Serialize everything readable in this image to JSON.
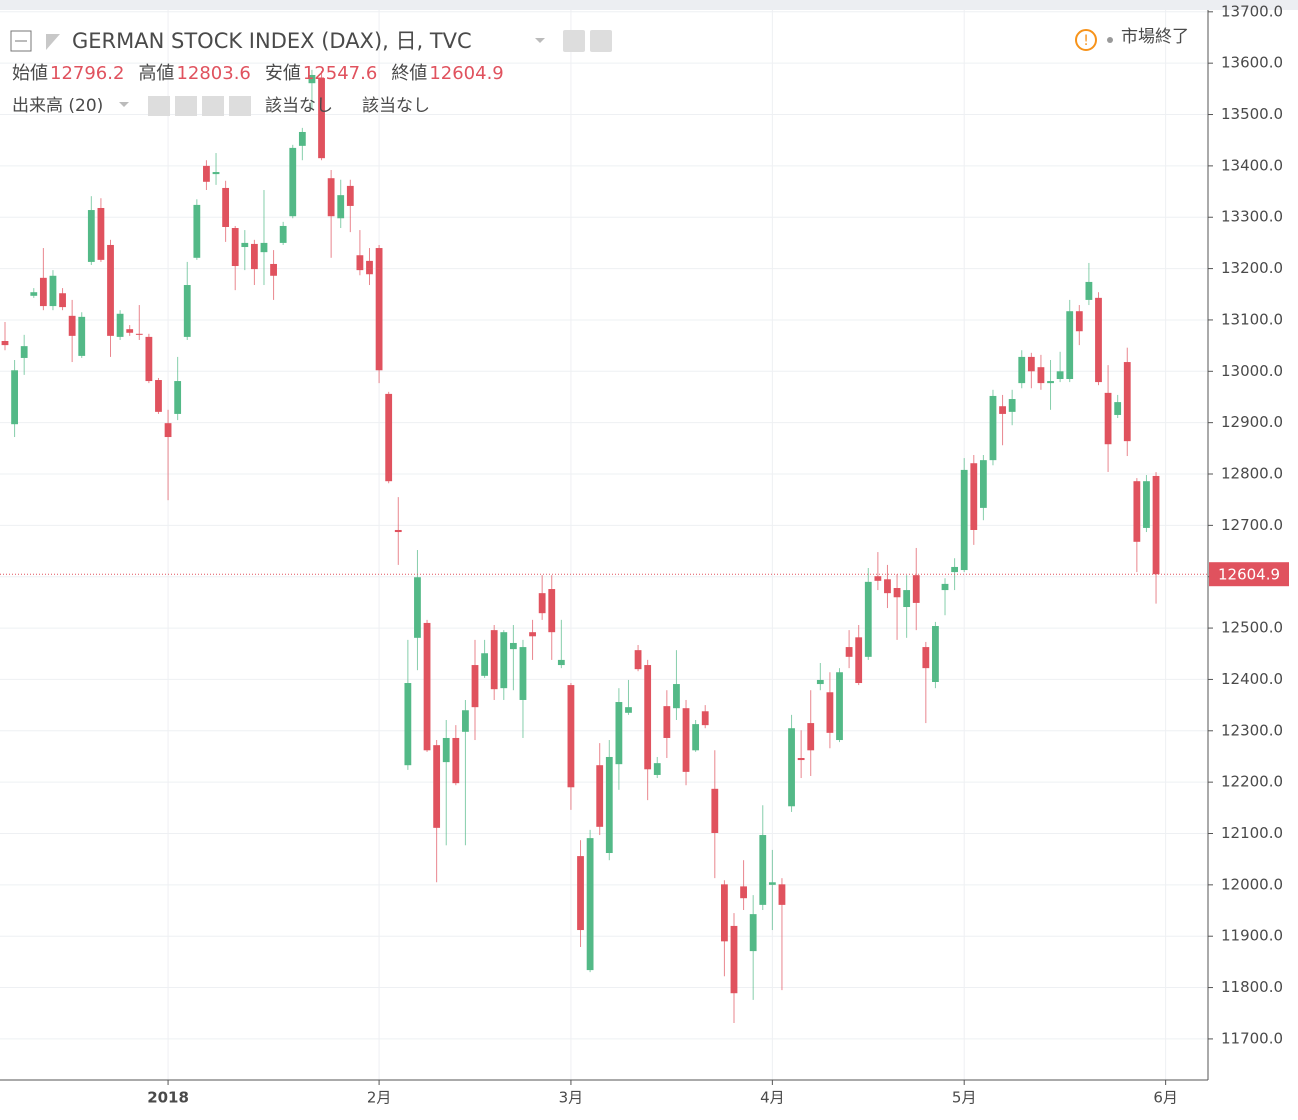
{
  "chart_data": {
    "type": "candlestick",
    "title": "GERMAN STOCK INDEX (DAX), 日, TVC",
    "ohlc_labels": [
      "始値",
      "高値",
      "安値",
      "終値"
    ],
    "indicator": "出来高 (20)",
    "indicator_values": [
      "該当なし",
      "該当なし"
    ],
    "status": "市場終了",
    "up_color": "#53b987",
    "down_color": "#e0525e",
    "grid": true,
    "ylim": [
      11620,
      13723
    ],
    "yticks": [
      {
        "value": 11700,
        "label": "11700.0"
      },
      {
        "value": 11800,
        "label": "11800.0"
      },
      {
        "value": 11900,
        "label": "11900.0"
      },
      {
        "value": 12000,
        "label": "12000.0"
      },
      {
        "value": 12100,
        "label": "12100.0"
      },
      {
        "value": 12200,
        "label": "12200.0"
      },
      {
        "value": 12300,
        "label": "12300.0"
      },
      {
        "value": 12400,
        "label": "12400.0"
      },
      {
        "value": 12500,
        "label": "12500.0"
      },
      {
        "value": 12600,
        "label": "12600.0"
      },
      {
        "value": 12700,
        "label": "12700.0"
      },
      {
        "value": 12800,
        "label": "12800.0"
      },
      {
        "value": 12900,
        "label": "12900.0"
      },
      {
        "value": 13000,
        "label": "13000.0"
      },
      {
        "value": 13100,
        "label": "13100.0"
      },
      {
        "value": 13200,
        "label": "13200.0"
      },
      {
        "value": 13300,
        "label": "13300.0"
      },
      {
        "value": 13400,
        "label": "13400.0"
      },
      {
        "value": 13500,
        "label": "13500.0"
      },
      {
        "value": 13600,
        "label": "13600.0"
      },
      {
        "value": 13700,
        "label": "13700.0"
      }
    ],
    "categories": [
      null,
      null,
      null,
      null,
      null,
      null,
      null,
      null,
      null,
      null,
      null,
      null,
      null,
      null,
      null,
      null,
      null,
      "2018",
      null,
      null,
      null,
      null,
      null,
      null,
      null,
      null,
      null,
      null,
      null,
      null,
      null,
      null,
      null,
      null,
      null,
      null,
      null,
      null,
      null,
      "2月",
      null,
      null,
      null,
      null,
      null,
      null,
      null,
      null,
      null,
      null,
      null,
      null,
      null,
      null,
      null,
      null,
      null,
      null,
      null,
      "3月",
      null,
      null,
      null,
      null,
      null,
      null,
      null,
      null,
      null,
      null,
      null,
      null,
      null,
      null,
      null,
      null,
      null,
      null,
      null,
      null,
      "4月",
      null,
      null,
      null,
      null,
      null,
      null,
      null,
      null,
      null,
      null,
      null,
      null,
      null,
      null,
      null,
      null,
      null,
      null,
      null,
      "5月",
      null,
      null,
      null,
      null,
      null,
      null,
      null,
      null,
      null,
      null,
      null,
      null,
      null,
      null,
      null,
      null,
      null,
      null,
      null,
      null,
      "6月"
    ],
    "open": [
      13059,
      12897,
      13026,
      13147,
      13182,
      13127,
      13152,
      13108,
      13030,
      13213,
      13318,
      13246,
      13067,
      13082,
      13073,
      13067,
      12983,
      12899,
      12917,
      13067,
      13221,
      13400,
      13384,
      13357,
      13279,
      13242,
      13248,
      13232,
      13209,
      13250,
      13302,
      13439,
      13561,
      13571,
      13376,
      13298,
      13361,
      13226,
      13215,
      13240,
      12956,
      12691,
      12233,
      12481,
      12510,
      12272,
      12239,
      12286,
      12298,
      12428,
      12407,
      12496,
      12383,
      12459,
      12360,
      12492,
      12568,
      12576,
      12428,
      12389,
      12056,
      11834,
      12233,
      12062,
      12235,
      12335,
      12457,
      12428,
      12214,
      12348,
      12344,
      12344,
      12262,
      12338,
      12187,
      12001,
      11920,
      11997,
      11871,
      11961,
      12000,
      12001,
      12153,
      12247,
      12315,
      12391,
      12375,
      12282,
      12463,
      12482,
      12444,
      12601,
      12595,
      12578,
      12541,
      12603,
      12463,
      12395,
      12574,
      12609,
      12613,
      12821,
      12734,
      12827,
      12932,
      12921,
      12977,
      13028,
      13008,
      12977,
      12985,
      12985,
      13117,
      13139,
      13143,
      12958,
      12915,
      13018,
      12786,
      12695,
      12796.2,
      null
    ],
    "high": [
      13096,
      13022,
      13071,
      13162,
      13240,
      13197,
      13162,
      13139,
      13115,
      13341,
      13337,
      13256,
      13119,
      13090,
      13129,
      13073,
      12987,
      12925,
      13028,
      13213,
      13335,
      13411,
      13425,
      13371,
      13283,
      13275,
      13256,
      13353,
      13236,
      13291,
      13441,
      13474,
      13587,
      13585,
      13392,
      13373,
      13373,
      13275,
      13240,
      13246,
      12960,
      12755,
      12477,
      12652,
      12516,
      12282,
      12321,
      12311,
      12360,
      12477,
      12477,
      12506,
      12496,
      12506,
      12477,
      12516,
      12603,
      12603,
      12516,
      12393,
      12087,
      12107,
      12276,
      12282,
      12383,
      12399,
      12467,
      12438,
      12249,
      12379,
      12457,
      12360,
      12321,
      12350,
      12262,
      12009,
      11945,
      12048,
      11980,
      12155,
      12068,
      12013,
      12331,
      12301,
      12379,
      12432,
      12414,
      12422,
      12496,
      12506,
      12617,
      12648,
      12623,
      12605,
      12603,
      12656,
      12473,
      12512,
      12597,
      12636,
      12831,
      12837,
      12837,
      12964,
      12954,
      12964,
      13041,
      13036,
      13032,
      13022,
      13038,
      13139,
      13129,
      13211,
      13154,
      13012,
      12954,
      13046,
      12792,
      12798,
      12803.6,
      null
    ],
    "low": [
      13041,
      12872,
      12993,
      13143,
      13119,
      13119,
      13119,
      13018,
      13026,
      13207,
      13213,
      13028,
      13061,
      13069,
      13061,
      12977,
      12917,
      12749,
      12905,
      13061,
      13217,
      13353,
      13363,
      13252,
      13158,
      13197,
      13168,
      13168,
      13139,
      13246,
      13298,
      13411,
      13509,
      13411,
      13221,
      13279,
      13271,
      13187,
      13168,
      12977,
      12782,
      12623,
      12224,
      12418,
      12259,
      12005,
      12077,
      12194,
      12077,
      12282,
      12403,
      12360,
      12360,
      12379,
      12286,
      12438,
      12516,
      12438,
      12422,
      12146,
      11879,
      11830,
      12097,
      12048,
      12185,
      12331,
      12416,
      12165,
      12208,
      12247,
      12321,
      12194,
      12259,
      12305,
      12013,
      11822,
      11731,
      11951,
      11776,
      11951,
      11912,
      11795,
      12142,
      12208,
      12212,
      12379,
      12266,
      12278,
      12422,
      12389,
      12438,
      12574,
      12539,
      12477,
      12481,
      12496,
      12315,
      12383,
      12525,
      12574,
      12609,
      12662,
      12710,
      12817,
      12856,
      12895,
      12967,
      12967,
      12964,
      12925,
      12979,
      12979,
      13051,
      13129,
      12973,
      12804,
      12909,
      12835,
      12609,
      12687,
      12547.6,
      null
    ],
    "close": [
      13051,
      13002,
      13049,
      13154,
      13127,
      13186,
      13125,
      13069,
      13106,
      13314,
      13217,
      13069,
      13112,
      13075,
      13071,
      12981,
      12921,
      12872,
      12981,
      13168,
      13324,
      13369,
      13388,
      13281,
      13205,
      13250,
      13199,
      13250,
      13186,
      13283,
      13435,
      13466,
      13577,
      13415,
      13302,
      13343,
      13322,
      13197,
      13189,
      13002,
      12786,
      12687,
      12393,
      12599,
      12262,
      12111,
      12286,
      12198,
      12340,
      12346,
      12451,
      12381,
      12492,
      12471,
      12463,
      12484,
      12529,
      12492,
      12438,
      12190,
      11912,
      12091,
      12113,
      12249,
      12356,
      12346,
      12420,
      12225,
      12237,
      12286,
      12391,
      12220,
      12313,
      12311,
      12101,
      11890,
      11789,
      11974,
      11943,
      12097,
      12005,
      11961,
      12305,
      12243,
      12262,
      12399,
      12296,
      12414,
      12444,
      12393,
      12590,
      12592,
      12568,
      12560,
      12574,
      12549,
      12422,
      12504,
      12586,
      12619,
      12808,
      12691,
      12827,
      12952,
      12917,
      12946,
      13028,
      13000,
      12977,
      12981,
      13000,
      13117,
      13078,
      13174,
      12979,
      12858,
      12940,
      12864,
      12668,
      12786,
      12604.9,
      null
    ]
  }
}
